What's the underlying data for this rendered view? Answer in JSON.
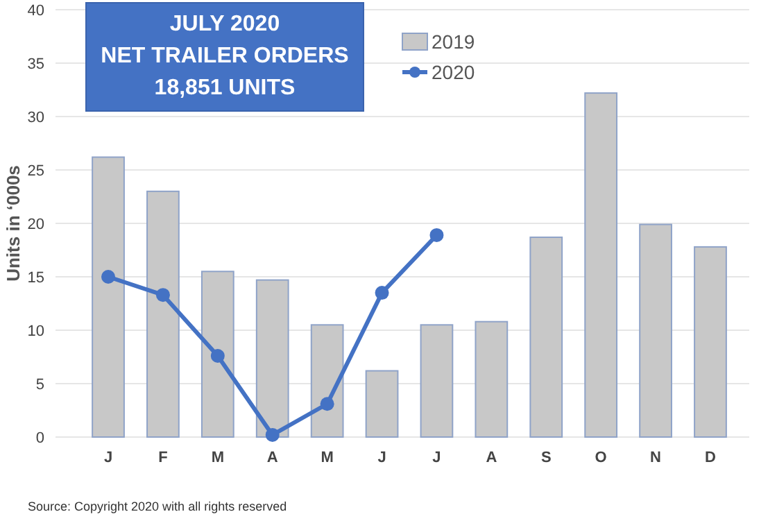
{
  "chart_data": {
    "type": "bar",
    "title": "JULY 2020\nNET TRAILER ORDERS\n18,851 UNITS",
    "ylabel": "Units in ‘000s",
    "categories": [
      "J",
      "F",
      "M",
      "A",
      "M",
      "J",
      "J",
      "A",
      "S",
      "O",
      "N",
      "D"
    ],
    "series": [
      {
        "name": "2019",
        "color": "#c8c8c8",
        "values": [
          26.2,
          23.0,
          15.5,
          14.7,
          10.5,
          6.2,
          10.5,
          10.8,
          18.7,
          32.2,
          19.9,
          17.8
        ]
      },
      {
        "name": "2020",
        "type": "line",
        "color": "#4472c4",
        "values": [
          15.0,
          13.3,
          7.6,
          0.2,
          3.1,
          13.5,
          18.9,
          null,
          null,
          null,
          null,
          null
        ]
      }
    ],
    "ylim": [
      0,
      40
    ],
    "yticks": [
      0,
      5,
      10,
      15,
      20,
      25,
      30,
      35,
      40
    ],
    "grid": "y",
    "legend": "top",
    "marker": "circle",
    "line_style": "solid",
    "annotations": [
      "Source: Copyright 2020 with all rights reserved"
    ]
  }
}
